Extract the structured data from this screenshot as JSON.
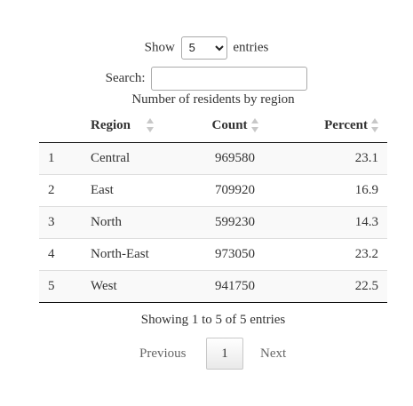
{
  "length_control": {
    "show_label": "Show",
    "selected": "5",
    "entries_label": "entries"
  },
  "search": {
    "label": "Search:",
    "value": ""
  },
  "table": {
    "caption": "Number of residents by region",
    "columns": {
      "index": "",
      "region": "Region",
      "count": "Count",
      "percent": "Percent"
    },
    "rows": [
      {
        "index": "1",
        "region": "Central",
        "count": "969580",
        "percent": "23.1"
      },
      {
        "index": "2",
        "region": "East",
        "count": "709920",
        "percent": "16.9"
      },
      {
        "index": "3",
        "region": "North",
        "count": "599230",
        "percent": "14.3"
      },
      {
        "index": "4",
        "region": "North-East",
        "count": "973050",
        "percent": "23.2"
      },
      {
        "index": "5",
        "region": "West",
        "count": "941750",
        "percent": "22.5"
      }
    ]
  },
  "info": "Showing 1 to 5 of 5 entries",
  "pagination": {
    "previous": "Previous",
    "current_page": "1",
    "next": "Next"
  }
}
